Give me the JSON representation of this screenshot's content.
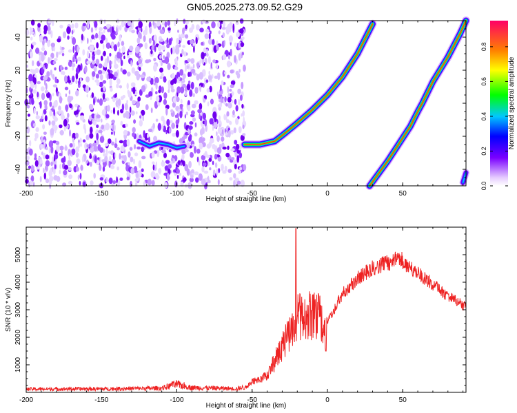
{
  "title": "GN05.2025.273.09.52.G29",
  "chart_data": [
    {
      "type": "heatmap",
      "xlabel": "Height of straight line (km)",
      "ylabel": "Frequency (Hz)",
      "xlim": [
        -200,
        92
      ],
      "ylim": [
        -50,
        50
      ],
      "x_ticks": [
        -200,
        -150,
        -100,
        -50,
        0,
        50
      ],
      "y_ticks": [
        -40,
        -20,
        0,
        20,
        40
      ],
      "colorbar": {
        "label": "Normalized spectral amplitude",
        "range": [
          0,
          0.95
        ],
        "ticks": [
          "0.0",
          "0.2",
          "0.4",
          "0.6",
          "0.8"
        ]
      },
      "noise_region_x": [
        -200,
        -55
      ],
      "ridges": [
        {
          "name": "",
          "x": [
            -125,
            -118,
            -112,
            -106,
            -100,
            -95
          ],
          "y": [
            -23,
            -26,
            -24,
            -25,
            -27,
            -26
          ],
          "amplitude": 0.35
        },
        {
          "name": "",
          "x": [
            -55,
            -45,
            -35,
            -28,
            -20,
            -10,
            0,
            10,
            20,
            30
          ],
          "y": [
            -25,
            -25,
            -23,
            -18,
            -12,
            -4,
            5,
            16,
            30,
            48
          ],
          "amplitude": 0.9
        },
        {
          "name": "",
          "x": [
            28,
            40,
            55,
            60,
            63,
            70,
            80,
            88,
            92
          ],
          "y": [
            -50,
            -35,
            -14,
            -5,
            0,
            13,
            28,
            42,
            50
          ],
          "amplitude": 0.85
        },
        {
          "name": "",
          "x": [
            90,
            92
          ],
          "y": [
            -48,
            -42
          ],
          "amplitude": 0.5
        }
      ]
    },
    {
      "type": "line",
      "xlabel": "Height of straight line (km)",
      "ylabel": "SNR (10 * v/v)",
      "xlim": [
        -200,
        92
      ],
      "ylim": [
        0,
        6000
      ],
      "x_ticks": [
        -200,
        -150,
        -100,
        -50,
        0,
        50
      ],
      "y_ticks": [
        1000,
        2000,
        3000,
        4000,
        5000
      ],
      "series": [
        {
          "name": "",
          "color": "#ee2222",
          "envelope_x": [
            -200,
            -150,
            -110,
            -100,
            -90,
            -60,
            -55,
            -50,
            -45,
            -40,
            -30,
            -25,
            -21,
            -15,
            -5,
            0,
            10,
            20,
            30,
            40,
            48,
            55,
            65,
            80,
            92
          ],
          "envelope_y": [
            130,
            140,
            170,
            320,
            190,
            150,
            200,
            500,
            600,
            800,
            2200,
            2900,
            3700,
            3700,
            3600,
            2700,
            3800,
            4400,
            4800,
            5000,
            5200,
            4800,
            4400,
            3700,
            3300
          ],
          "spikes": [
            {
              "x": -21,
              "y": 5950
            },
            {
              "x": -1,
              "y": 1500
            },
            {
              "x": -103,
              "y": 380
            }
          ]
        }
      ]
    }
  ]
}
